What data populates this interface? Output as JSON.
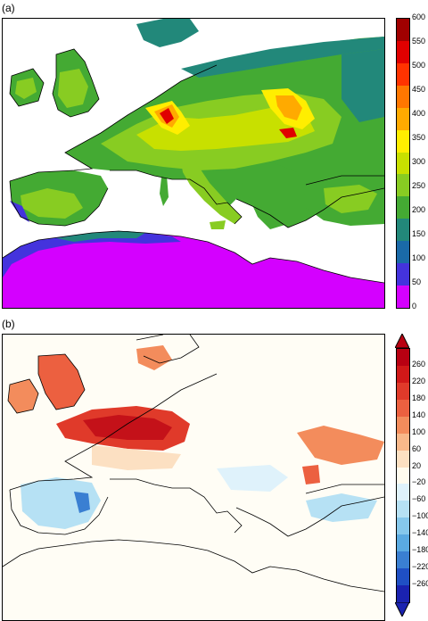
{
  "panels": [
    {
      "label": "(a)",
      "colorbar": {
        "labels": [
          "600",
          "550",
          "500",
          "450",
          "400",
          "350",
          "300",
          "250",
          "200",
          "150",
          "100",
          "50",
          "0"
        ],
        "colors": [
          "#a00000",
          "#e00000",
          "#ff3300",
          "#ff7700",
          "#ffaa00",
          "#ffee00",
          "#c8e000",
          "#88cc22",
          "#44aa33",
          "#22887a",
          "#1a6aa8",
          "#4433dd",
          "#d400ff"
        ]
      }
    },
    {
      "label": "(b)",
      "colorbar": {
        "labels": [
          "260",
          "220",
          "180",
          "140",
          "100",
          "60",
          "20",
          "−20",
          "−60",
          "−100",
          "−140",
          "−180",
          "−220",
          "−260"
        ],
        "colors": [
          "#b80012",
          "#d01818",
          "#e03a2a",
          "#ec6040",
          "#f38c5c",
          "#f8b88a",
          "#fce0c2",
          "#fffbee",
          "#dff2fb",
          "#b6e1f4",
          "#86c8ec",
          "#5aaae2",
          "#3a7fd2",
          "#1f4fc4",
          "#1a22b0"
        ]
      }
    }
  ]
}
